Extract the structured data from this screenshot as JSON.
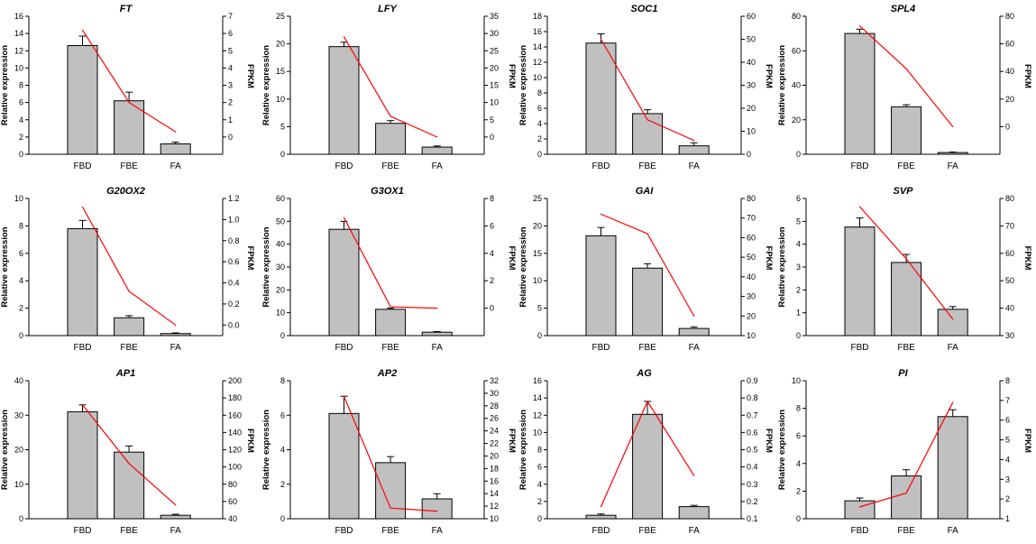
{
  "chart_data": [
    {
      "type": "bar",
      "title": "FT",
      "categories": [
        "FBD",
        "FBE",
        "FA"
      ],
      "ylabel": "Relative expression",
      "y2label": "FPKM",
      "ylim": [
        0,
        16
      ],
      "yticks": [
        0,
        2,
        4,
        6,
        8,
        10,
        12,
        14,
        16
      ],
      "y2lim": [
        -1,
        7
      ],
      "y2ticks": [
        0,
        1,
        2,
        3,
        4,
        5,
        6,
        7
      ],
      "series": [
        {
          "name": "Relative expression",
          "type": "bar",
          "values": [
            12.6,
            6.2,
            1.2
          ],
          "errors": [
            1.1,
            1.0,
            0.2
          ]
        },
        {
          "name": "FPKM",
          "type": "line",
          "color": "#ff0000",
          "values": [
            6.2,
            2.0,
            0.3
          ]
        }
      ]
    },
    {
      "type": "bar",
      "title": "LFY",
      "categories": [
        "FBD",
        "FBE",
        "FA"
      ],
      "ylabel": "Relative expression",
      "y2label": "FPKM",
      "ylim": [
        0,
        25
      ],
      "yticks": [
        0,
        5,
        10,
        15,
        20,
        25
      ],
      "y2lim": [
        -5,
        35
      ],
      "y2ticks": [
        0,
        5,
        10,
        15,
        20,
        25,
        30,
        35
      ],
      "series": [
        {
          "name": "Relative expression",
          "type": "bar",
          "values": [
            19.5,
            5.6,
            1.3
          ],
          "errors": [
            0.8,
            0.5,
            0.2
          ]
        },
        {
          "name": "FPKM",
          "type": "line",
          "color": "#ff0000",
          "values": [
            29,
            6,
            0
          ]
        }
      ]
    },
    {
      "type": "bar",
      "title": "SOC1",
      "categories": [
        "FBD",
        "FBE",
        "FA"
      ],
      "ylabel": "Relative expression",
      "y2label": "FPKM",
      "ylim": [
        0,
        18
      ],
      "yticks": [
        0,
        2,
        4,
        6,
        8,
        10,
        12,
        14,
        16,
        18
      ],
      "y2lim": [
        0,
        60
      ],
      "y2ticks": [
        0,
        10,
        20,
        30,
        40,
        50,
        60
      ],
      "series": [
        {
          "name": "Relative expression",
          "type": "bar",
          "values": [
            14.5,
            5.3,
            1.1
          ],
          "errors": [
            1.2,
            0.5,
            0.4
          ]
        },
        {
          "name": "FPKM",
          "type": "line",
          "color": "#ff0000",
          "values": [
            50,
            15,
            6
          ]
        }
      ]
    },
    {
      "type": "bar",
      "title": "SPL4",
      "categories": [
        "FBD",
        "FBE",
        "FA"
      ],
      "ylabel": "Relative expression",
      "y2label": "FPKM",
      "ylim": [
        0,
        80
      ],
      "yticks": [
        0,
        20,
        40,
        60,
        80
      ],
      "y2lim": [
        -20,
        80
      ],
      "y2ticks": [
        0,
        20,
        40,
        60,
        80
      ],
      "series": [
        {
          "name": "Relative expression",
          "type": "bar",
          "values": [
            70,
            27.5,
            1
          ],
          "errors": [
            2.5,
            1.2,
            0.3
          ]
        },
        {
          "name": "FPKM",
          "type": "line",
          "color": "#ff0000",
          "values": [
            73,
            42,
            0
          ]
        }
      ]
    },
    {
      "type": "bar",
      "title": "G20OX2",
      "categories": [
        "FBD",
        "FBE",
        "FA"
      ],
      "ylabel": "Relative expression",
      "y2label": "FPKM",
      "ylim": [
        0,
        10
      ],
      "yticks": [
        0,
        2,
        4,
        6,
        8,
        10
      ],
      "y2lim": [
        -0.1,
        1.2
      ],
      "y2ticks": [
        "0.0",
        "0.2",
        "0.4",
        "0.6",
        "0.8",
        "1.0",
        "1.2"
      ],
      "series": [
        {
          "name": "Relative expression",
          "type": "bar",
          "values": [
            7.8,
            1.3,
            0.15
          ],
          "errors": [
            0.6,
            0.15,
            0.05
          ]
        },
        {
          "name": "FPKM",
          "type": "line",
          "color": "#ff0000",
          "values": [
            1.12,
            0.32,
            0.0
          ]
        }
      ]
    },
    {
      "type": "bar",
      "title": "G3OX1",
      "categories": [
        "FBD",
        "FBE",
        "FA"
      ],
      "ylabel": "Relative expression",
      "y2label": "FPKM",
      "ylim": [
        0,
        60
      ],
      "yticks": [
        0,
        10,
        20,
        30,
        40,
        50,
        60
      ],
      "y2lim": [
        -2,
        8
      ],
      "y2ticks": [
        0,
        2,
        4,
        6,
        8
      ],
      "series": [
        {
          "name": "Relative expression",
          "type": "bar",
          "values": [
            46.5,
            11.5,
            1.5
          ],
          "errors": [
            3.5,
            0.5,
            0.3
          ]
        },
        {
          "name": "FPKM",
          "type": "line",
          "color": "#ff0000",
          "values": [
            6.6,
            0.1,
            0.0
          ]
        }
      ]
    },
    {
      "type": "bar",
      "title": "GAI",
      "categories": [
        "FBD",
        "FBE",
        "FA"
      ],
      "ylabel": "Relative expression",
      "y2label": "FPKM",
      "ylim": [
        0,
        25
      ],
      "yticks": [
        0,
        5,
        10,
        15,
        20,
        25
      ],
      "y2lim": [
        10,
        80
      ],
      "y2ticks": [
        10,
        20,
        30,
        40,
        50,
        60,
        70,
        80
      ],
      "series": [
        {
          "name": "Relative expression",
          "type": "bar",
          "values": [
            18.2,
            12.3,
            1.3
          ],
          "errors": [
            1.5,
            0.8,
            0.3
          ]
        },
        {
          "name": "FPKM",
          "type": "line",
          "color": "#ff0000",
          "values": [
            72,
            62,
            20
          ]
        }
      ]
    },
    {
      "type": "bar",
      "title": "SVP",
      "categories": [
        "FBD",
        "FBE",
        "FA"
      ],
      "ylabel": "Relative expression",
      "y2label": "FPKM",
      "ylim": [
        0,
        6
      ],
      "yticks": [
        0,
        1,
        2,
        3,
        4,
        5,
        6
      ],
      "y2lim": [
        30,
        80
      ],
      "y2ticks": [
        30,
        40,
        50,
        60,
        70,
        80
      ],
      "series": [
        {
          "name": "Relative expression",
          "type": "bar",
          "values": [
            4.75,
            3.2,
            1.15
          ],
          "errors": [
            0.4,
            0.35,
            0.12
          ]
        },
        {
          "name": "FPKM",
          "type": "line",
          "color": "#ff0000",
          "values": [
            77,
            58,
            36
          ]
        }
      ]
    },
    {
      "type": "bar",
      "title": "AP1",
      "categories": [
        "FBD",
        "FBE",
        "FA"
      ],
      "ylabel": "Relative expression",
      "y2label": "FPKM",
      "ylim": [
        0,
        40
      ],
      "yticks": [
        0,
        10,
        20,
        30,
        40
      ],
      "y2lim": [
        40,
        200
      ],
      "y2ticks": [
        40,
        60,
        80,
        100,
        120,
        140,
        160,
        180,
        200
      ],
      "series": [
        {
          "name": "Relative expression",
          "type": "bar",
          "values": [
            31,
            19.3,
            1
          ],
          "errors": [
            2,
            1.8,
            0.3
          ]
        },
        {
          "name": "FPKM",
          "type": "line",
          "color": "#ff0000",
          "values": [
            172,
            104,
            56
          ]
        }
      ]
    },
    {
      "type": "bar",
      "title": "AP2",
      "categories": [
        "FBD",
        "FBE",
        "FA"
      ],
      "ylabel": "Relative expression",
      "y2label": "FPKM",
      "ylim": [
        0,
        8
      ],
      "yticks": [
        0,
        2,
        4,
        6,
        8
      ],
      "y2lim": [
        10,
        32
      ],
      "y2ticks": [
        10,
        12,
        14,
        16,
        18,
        20,
        22,
        24,
        26,
        28,
        30,
        32
      ],
      "series": [
        {
          "name": "Relative expression",
          "type": "bar",
          "values": [
            6.1,
            3.25,
            1.15
          ],
          "errors": [
            1.0,
            0.35,
            0.3
          ]
        },
        {
          "name": "FPKM",
          "type": "line",
          "color": "#ff0000",
          "values": [
            29.5,
            11.7,
            11.2
          ]
        }
      ]
    },
    {
      "type": "bar",
      "title": "AG",
      "categories": [
        "FBD",
        "FBE",
        "FA"
      ],
      "ylabel": "Relative expression",
      "y2label": "FPKM",
      "ylim": [
        0,
        16
      ],
      "yticks": [
        0,
        2,
        4,
        6,
        8,
        10,
        12,
        14,
        16
      ],
      "y2lim": [
        0.1,
        0.9
      ],
      "y2ticks": [
        "0.1",
        "0.2",
        "0.3",
        "0.4",
        "0.5",
        "0.6",
        "0.7",
        "0.8",
        "0.9"
      ],
      "series": [
        {
          "name": "Relative expression",
          "type": "bar",
          "values": [
            0.4,
            12.1,
            1.4
          ],
          "errors": [
            0.15,
            1.5,
            0.15
          ]
        },
        {
          "name": "FPKM",
          "type": "line",
          "color": "#ff0000",
          "values": [
            0.17,
            0.78,
            0.35
          ]
        }
      ]
    },
    {
      "type": "bar",
      "title": "PI",
      "categories": [
        "FBD",
        "FBE",
        "FA"
      ],
      "ylabel": "Relative expression",
      "y2label": "FPKM",
      "ylim": [
        0,
        10
      ],
      "yticks": [
        0,
        2,
        4,
        6,
        8,
        10
      ],
      "y2lim": [
        1,
        8
      ],
      "y2ticks": [
        1,
        2,
        3,
        4,
        5,
        6,
        7,
        8
      ],
      "series": [
        {
          "name": "Relative expression",
          "type": "bar",
          "values": [
            1.3,
            3.1,
            7.4
          ],
          "errors": [
            0.2,
            0.45,
            0.5
          ]
        },
        {
          "name": "FPKM",
          "type": "line",
          "color": "#ff0000",
          "values": [
            1.6,
            2.3,
            6.9
          ]
        }
      ]
    }
  ]
}
